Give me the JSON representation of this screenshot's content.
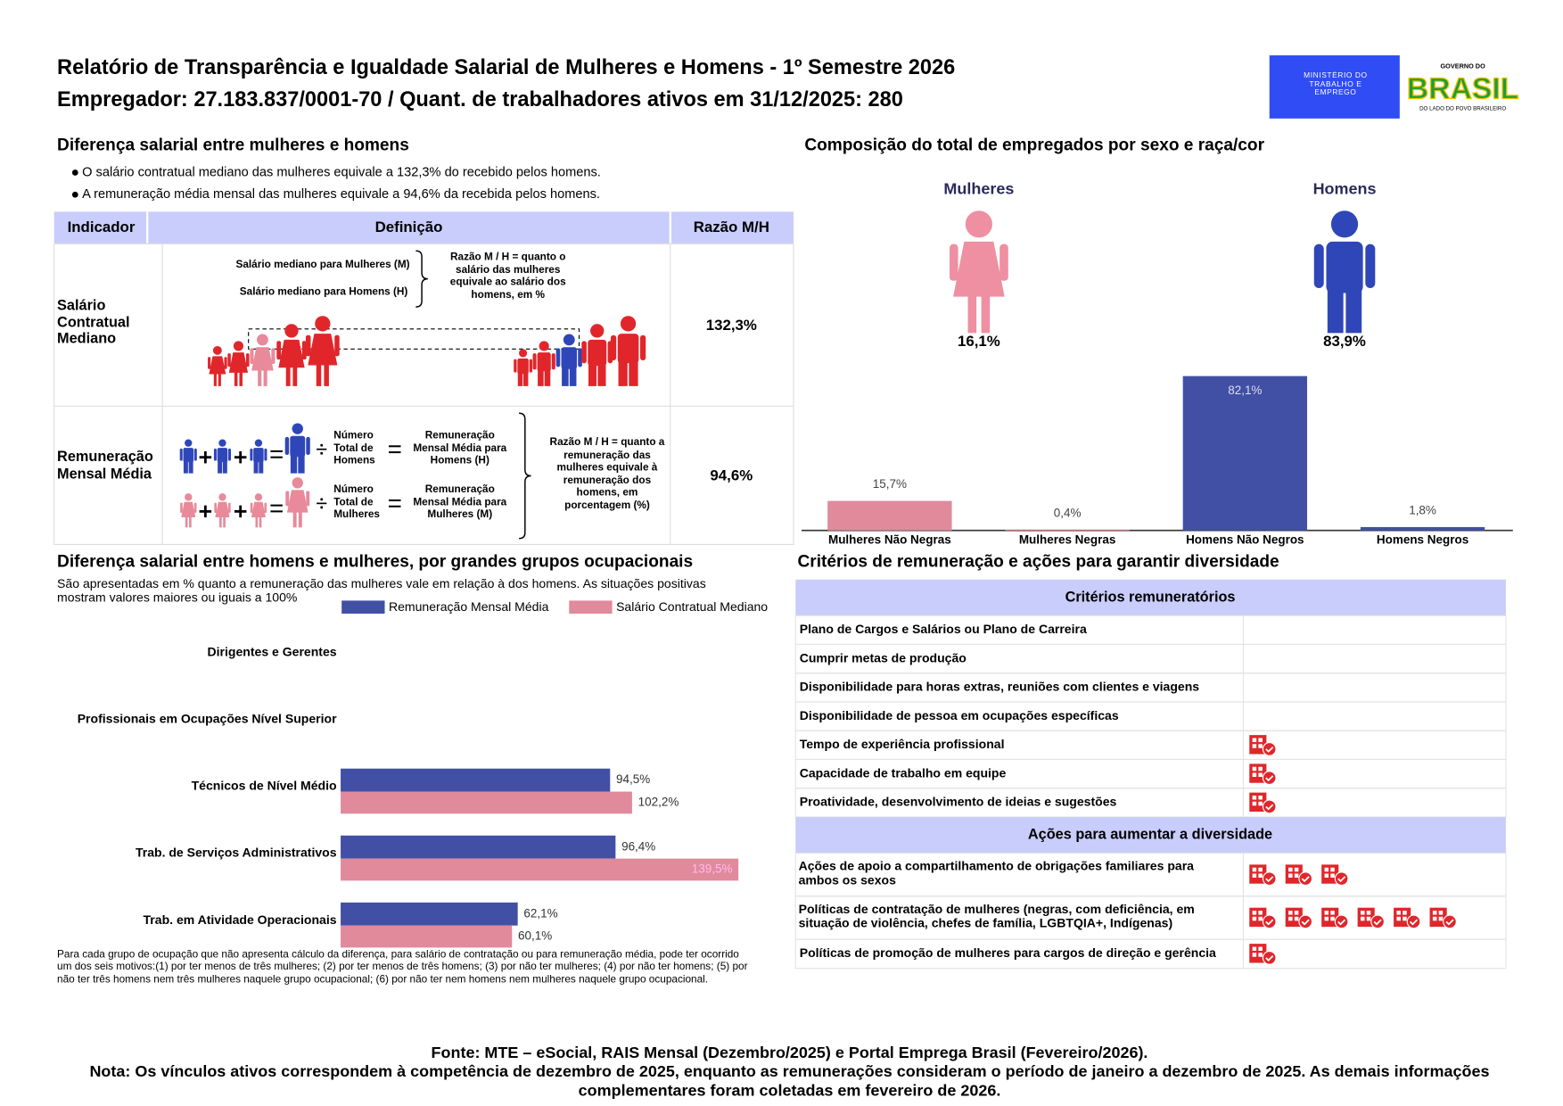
{
  "header": {
    "title": "Relatório de Transparência e Igualdade Salarial de Mulheres e Homens - 1º Semestre 2026",
    "subtitle": "Empregador: 27.183.837/0001-70 / Quant. de trabalhadores ativos em 31/12/2025: 280",
    "ministry": "MINISTÉRIO DO TRABALHO E EMPREGO",
    "government": "GOVERNO DO",
    "brand": "BRASIL",
    "slogan": "DO LADO DO POVO BRASILEIRO"
  },
  "salary_gap": {
    "title": "Diferença salarial entre mulheres e homens",
    "bullets": [
      "O salário contratual mediano das mulheres equivale a 132,3% do recebido pelos homens.",
      "A remuneração média mensal das mulheres equivale a 94,6% da recebida pelos homens."
    ],
    "table": {
      "headers": [
        "Indicador",
        "Definição",
        "Razão M/H"
      ],
      "rows": [
        {
          "indicator": "Salário Contratual Mediano",
          "terms": [
            "Salário mediano para Mulheres (M)",
            "Salário mediano para Homens (H)",
            "Razão M / H = quanto o salário das mulheres equivale ao salário dos homens, em %"
          ],
          "ratio": "132,3%"
        },
        {
          "indicator": "Remuneração Mensal Média",
          "terms": [
            "Número Total de Homens",
            "Remuneração Mensal Média para Homens (H)",
            "Número Total de Mulheres",
            "Remuneração Mensal Média para Mulheres (M)",
            "Razão M / H = quanto a remuneração das mulheres equivale à remuneração dos homens, em porcentagem (%)"
          ],
          "ratio": "94,6%"
        }
      ]
    }
  },
  "composition": {
    "groups": [
      {
        "label": "Mulheres",
        "share": "16,1%"
      },
      {
        "label": "Homens",
        "share": "83,9%"
      }
    ]
  },
  "chart_data": [
    {
      "type": "bar",
      "title": "Composição do total de empregados por sexo e raça/cor",
      "categories": [
        "Mulheres Não Negras",
        "Mulheres Negras",
        "Homens Não Negros",
        "Homens Negros"
      ],
      "values": [
        15.7,
        0.4,
        82.1,
        1.8
      ],
      "value_labels": [
        "15,7%",
        "0,4%",
        "82,1%",
        "1,8%"
      ],
      "colors": [
        "#e08a9c",
        "#e08a9c",
        "#4150a5",
        "#4150a5"
      ]
    },
    {
      "type": "barh",
      "title": "Diferença salarial entre homens e mulheres, por grandes grupos ocupacionais",
      "subtitle": "São apresentadas em % quanto a remuneração das mulheres vale em relação à dos homens. As situações positivas mostram valores maiores ou iguais a 100%",
      "categories": [
        "Dirigentes e Gerentes",
        "Profissionais em Ocupações Nível Superior",
        "Técnicos de Nível Médio",
        "Trab. de Serviços Administrativos",
        "Trab. em Atividade Operacionais"
      ],
      "series": [
        {
          "name": "Remuneração Mensal Média",
          "color": "#4150a5",
          "values": [
            null,
            null,
            94.5,
            96.4,
            62.1
          ],
          "value_labels": [
            null,
            null,
            "94,5%",
            "96,4%",
            "62,1%"
          ]
        },
        {
          "name": "Salário Contratual Mediano",
          "color": "#e08a9c",
          "values": [
            null,
            null,
            102.2,
            139.5,
            60.1
          ],
          "value_labels": [
            null,
            null,
            "102,2%",
            "139,5%",
            "60,1%"
          ]
        }
      ],
      "note": "Para cada grupo de ocupação que não apresenta cálculo da diferença, para salário de contratação ou para remuneração média, pode ter ocorrido um dos seis motivos:(1) por ter menos de três mulheres; (2) por ter menos de três homens; (3) por não ter mulheres; (4) por não ter homens; (5) por não ter três homens nem três mulheres naquele grupo ocupacional; (6) por não ter nem homens nem mulheres naquele grupo ocupacional."
    }
  ],
  "criteria": {
    "title": "Critérios de remuneração e ações para garantir diversidade",
    "sections": [
      {
        "header": "Critérios remuneratórios",
        "rows": [
          {
            "label": "Plano de Cargos e Salários ou Plano de Carreira",
            "icons": 0
          },
          {
            "label": "Cumprir metas de produção",
            "icons": 0
          },
          {
            "label": "Disponibilidade para horas extras, reuniões com clientes e viagens",
            "icons": 0
          },
          {
            "label": "Disponibilidade de pessoa em ocupações específicas",
            "icons": 0
          },
          {
            "label": "Tempo de experiência profissional",
            "icons": 1
          },
          {
            "label": "Capacidade de trabalho em equipe",
            "icons": 1
          },
          {
            "label": "Proatividade, desenvolvimento de ideias e sugestões",
            "icons": 1
          }
        ]
      },
      {
        "header": "Ações para aumentar a diversidade",
        "rows": [
          {
            "label": "Ações de apoio a compartilhamento de obrigações familiares para ambos os sexos",
            "icons": 3
          },
          {
            "label": "Políticas de contratação de mulheres (negras, com deficiência, em situação de violência, chefes de família, LGBTQIA+, Indígenas)",
            "icons": 6
          },
          {
            "label": "Políticas de promoção de mulheres para cargos de direção e gerência",
            "icons": 1
          }
        ]
      }
    ]
  },
  "footer": {
    "source": "Fonte: MTE – eSocial, RAIS Mensal (Dezembro/2025) e Portal Emprega Brasil (Fevereiro/2026).",
    "note": "Nota: Os vínculos ativos correspondem à competência de dezembro de 2025, enquanto as remunerações consideram o período de janeiro a dezembro de 2025. As demais informações complementares foram coletadas em fevereiro de 2026."
  }
}
